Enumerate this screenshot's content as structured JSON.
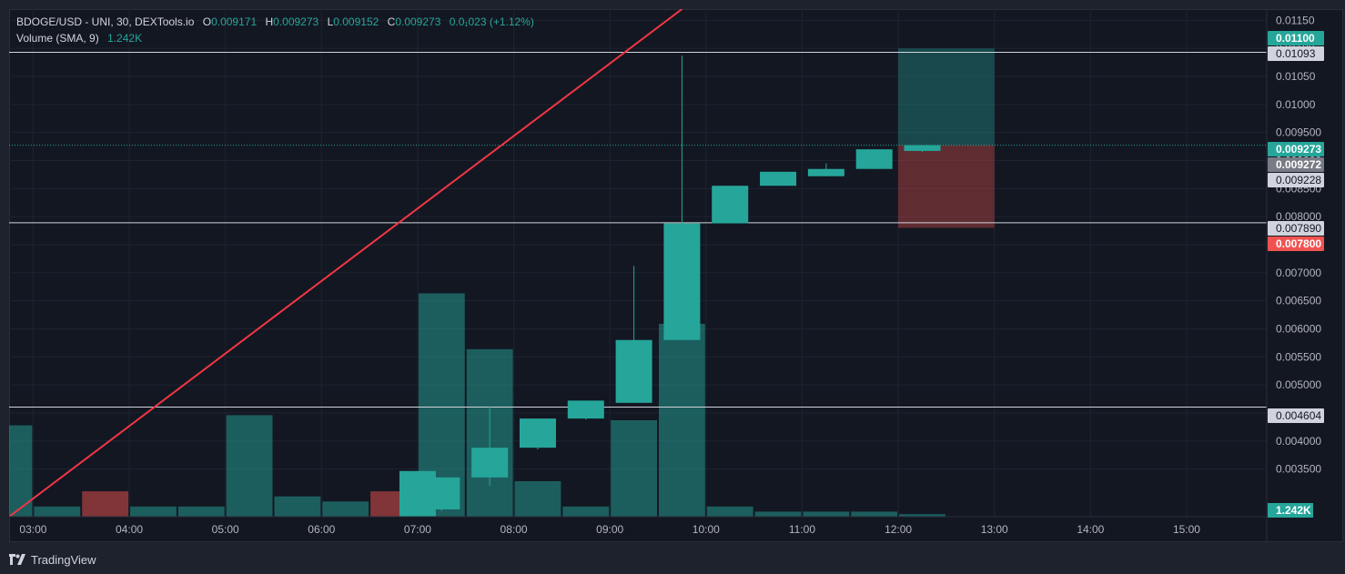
{
  "header": {
    "symbol": "BDOGE/USD - UNI, 30, DEXTools.io",
    "open_label": "O",
    "open": "0.009171",
    "high_label": "H",
    "high": "0.009273",
    "low_label": "L",
    "low": "0.009152",
    "close_label": "C",
    "close": "0.009273",
    "change": "0.0₁023 (+1.12%)",
    "volume_label": "Volume (SMA, 9)",
    "volume_value": "1.242K"
  },
  "footer": {
    "brand": "TradingView",
    "logo_icon": "tradingview-logo-icon"
  },
  "colors": {
    "up": "#26a69a",
    "down": "#ef5350",
    "trendline": "#f23645",
    "background": "#131722",
    "grid": "#1f2330",
    "axis_text": "#b2b5be"
  },
  "chart_data": {
    "type": "candlestick",
    "ylim": [
      0.00265,
      0.0117
    ],
    "xlim": [
      "02:45",
      "15:50"
    ],
    "x_ticks": [
      "03:00",
      "04:00",
      "05:00",
      "06:00",
      "07:00",
      "08:00",
      "09:00",
      "10:00",
      "11:00",
      "12:00",
      "13:00",
      "14:00",
      "15:00"
    ],
    "y_ticks": [
      "0.003500",
      "0.004000",
      "0.004500",
      "0.005000",
      "0.005500",
      "0.006000",
      "0.006500",
      "0.007000",
      "0.007500",
      "0.008000",
      "0.008500",
      "0.009000",
      "0.009500",
      "0.01000",
      "0.01050",
      "0.01100",
      "0.01150"
    ],
    "y_tick_values": [
      0.0035,
      0.004,
      0.0045,
      0.005,
      0.0055,
      0.006,
      0.0065,
      0.007,
      0.0075,
      0.008,
      0.0085,
      0.009,
      0.0095,
      0.01,
      0.0105,
      0.011,
      0.0115
    ],
    "candles": [
      {
        "t": "07:00",
        "o": 0.00278,
        "h": 0.00335,
        "l": 0.00275,
        "c": 0.00335
      },
      {
        "t": "07:30",
        "o": 0.00335,
        "h": 0.00462,
        "l": 0.0032,
        "c": 0.00388
      },
      {
        "t": "08:00",
        "o": 0.00388,
        "h": 0.0044,
        "l": 0.00385,
        "c": 0.0044
      },
      {
        "t": "08:30",
        "o": 0.0044,
        "h": 0.00472,
        "l": 0.00438,
        "c": 0.00472
      },
      {
        "t": "09:00",
        "o": 0.00468,
        "h": 0.00712,
        "l": 0.00468,
        "c": 0.0058
      },
      {
        "t": "09:30",
        "o": 0.0058,
        "h": 0.01087,
        "l": 0.0058,
        "c": 0.00788
      },
      {
        "t": "10:00",
        "o": 0.00788,
        "h": 0.00855,
        "l": 0.00788,
        "c": 0.00855
      },
      {
        "t": "10:30",
        "o": 0.00855,
        "h": 0.0088,
        "l": 0.00855,
        "c": 0.0088
      },
      {
        "t": "11:00",
        "o": 0.00872,
        "h": 0.00895,
        "l": 0.00872,
        "c": 0.00885
      },
      {
        "t": "11:30",
        "o": 0.00885,
        "h": 0.0092,
        "l": 0.00885,
        "c": 0.0092
      },
      {
        "t": "12:00",
        "o": 0.009171,
        "h": 0.009273,
        "l": 0.009152,
        "c": 0.009273
      }
    ],
    "volume": [
      {
        "t": "02:45",
        "v": 0.18,
        "dir": "up"
      },
      {
        "t": "03:15",
        "v": 0.02,
        "dir": "up"
      },
      {
        "t": "03:45",
        "v": 0.05,
        "dir": "down"
      },
      {
        "t": "04:15",
        "v": 0.02,
        "dir": "up"
      },
      {
        "t": "04:45",
        "v": 0.02,
        "dir": "up"
      },
      {
        "t": "05:15",
        "v": 0.2,
        "dir": "up"
      },
      {
        "t": "05:45",
        "v": 0.04,
        "dir": "up"
      },
      {
        "t": "06:15",
        "v": 0.03,
        "dir": "up"
      },
      {
        "t": "06:45",
        "v": 0.05,
        "dir": "down"
      },
      {
        "t": "07:15",
        "v": 0.44,
        "dir": "up"
      },
      {
        "t": "07:45",
        "v": 0.33,
        "dir": "up"
      },
      {
        "t": "08:15",
        "v": 0.07,
        "dir": "up"
      },
      {
        "t": "08:45",
        "v": 0.02,
        "dir": "up"
      },
      {
        "t": "09:15",
        "v": 0.19,
        "dir": "up"
      },
      {
        "t": "09:45",
        "v": 0.38,
        "dir": "up"
      },
      {
        "t": "10:15",
        "v": 0.02,
        "dir": "up"
      },
      {
        "t": "10:45",
        "v": 0.01,
        "dir": "up"
      },
      {
        "t": "11:15",
        "v": 0.01,
        "dir": "up"
      },
      {
        "t": "11:45",
        "v": 0.01,
        "dir": "up"
      },
      {
        "t": "12:15",
        "v": 0.005,
        "dir": "up"
      }
    ],
    "volume_highlight": {
      "t": "07:00",
      "v": 0.09
    },
    "horizontal_lines": [
      {
        "value": 0.01093,
        "label": "0.01093"
      },
      {
        "value": 0.00789,
        "label": "0.007890"
      },
      {
        "value": 0.004604,
        "label": "0.004604"
      }
    ],
    "trendline": {
      "start": {
        "t": "02:45",
        "price": 0.00265
      },
      "end": {
        "t": "09:45",
        "price": 0.0117
      }
    },
    "position": {
      "start": "12:00",
      "end": "13:00",
      "entry": 0.009273,
      "target": 0.011,
      "stop": 0.0078
    },
    "price_labels": [
      {
        "value": 0.011,
        "label": "0.01100",
        "style": "target"
      },
      {
        "value": 0.01093,
        "label": "0.01093",
        "style": "line"
      },
      {
        "value": 0.009273,
        "label": "0.009273",
        "style": "last"
      },
      {
        "value": 0.009272,
        "label": "0.009272",
        "style": "gray"
      },
      {
        "value": 0.009228,
        "label": "0.009228",
        "style": "line"
      },
      {
        "value": 0.00789,
        "label": "0.007890",
        "style": "line"
      },
      {
        "value": 0.0078,
        "label": "0.007800",
        "style": "stop"
      },
      {
        "value": 0.004604,
        "label": "0.004604",
        "style": "line"
      }
    ],
    "volume_label": "1.242K"
  }
}
